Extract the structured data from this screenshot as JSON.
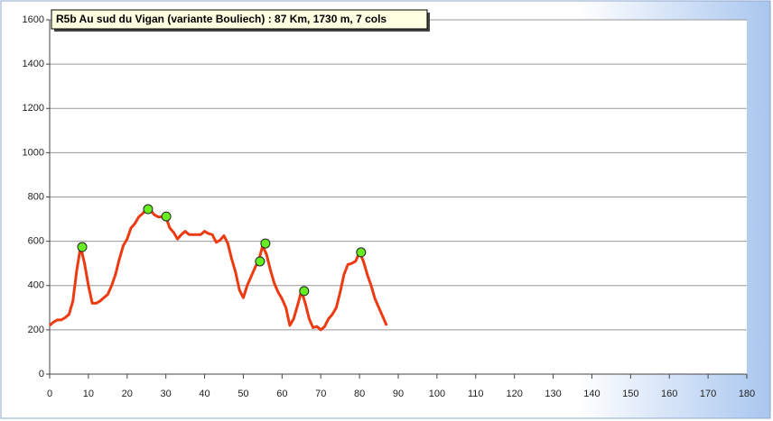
{
  "chart_data": {
    "type": "line",
    "title": "R5b Au sud  du Vigan (variante Bouliech) : 87 Km, 1730 m, 7 cols",
    "series": [
      {
        "color": "#ee3a10",
        "x": [
          0,
          1,
          2,
          3,
          4,
          5,
          6,
          7,
          8,
          9,
          10,
          11,
          12,
          13,
          14,
          15,
          16,
          17,
          18,
          19,
          20,
          21,
          22,
          23,
          24,
          25,
          26,
          27,
          28,
          29,
          30,
          31,
          32,
          33,
          34,
          35,
          36,
          37,
          38,
          39,
          40,
          41,
          42,
          43,
          44,
          45,
          46,
          47,
          48,
          49,
          50,
          51,
          52,
          53,
          54,
          55,
          56,
          57,
          58,
          59,
          60,
          61,
          62,
          63,
          64,
          65,
          66,
          67,
          68,
          69,
          70,
          71,
          72,
          73,
          74,
          75,
          76,
          77,
          78,
          79,
          80,
          81,
          82,
          83,
          84,
          85,
          86,
          87
        ],
        "values": [
          220,
          235,
          245,
          245,
          255,
          270,
          330,
          470,
          575,
          500,
          400,
          320,
          320,
          330,
          345,
          360,
          400,
          450,
          520,
          580,
          610,
          660,
          680,
          710,
          725,
          745,
          740,
          720,
          710,
          710,
          710,
          660,
          640,
          610,
          630,
          645,
          630,
          630,
          630,
          630,
          645,
          635,
          630,
          595,
          605,
          625,
          590,
          520,
          460,
          380,
          345,
          400,
          440,
          480,
          515,
          580,
          540,
          470,
          410,
          370,
          340,
          300,
          220,
          250,
          310,
          375,
          320,
          250,
          210,
          215,
          200,
          215,
          250,
          270,
          300,
          370,
          450,
          495,
          500,
          510,
          550,
          510,
          450,
          400,
          340,
          300,
          260,
          220
        ]
      },
      {
        "type": "scatter",
        "color": "#66ee22",
        "x": [
          8.4,
          25.4,
          30.1,
          54.3,
          55.7,
          65.7,
          80.4
        ],
        "values": [
          574,
          745,
          712,
          509,
          590,
          375,
          550
        ]
      }
    ],
    "xlim": [
      0,
      180
    ],
    "xticks": [
      0,
      10,
      20,
      30,
      40,
      50,
      60,
      70,
      80,
      90,
      100,
      110,
      120,
      130,
      140,
      150,
      160,
      170,
      180
    ],
    "ylim": [
      0,
      1600
    ],
    "yticks": [
      0,
      200,
      400,
      600,
      800,
      1000,
      1200,
      1400,
      1600
    ],
    "grid": true
  }
}
